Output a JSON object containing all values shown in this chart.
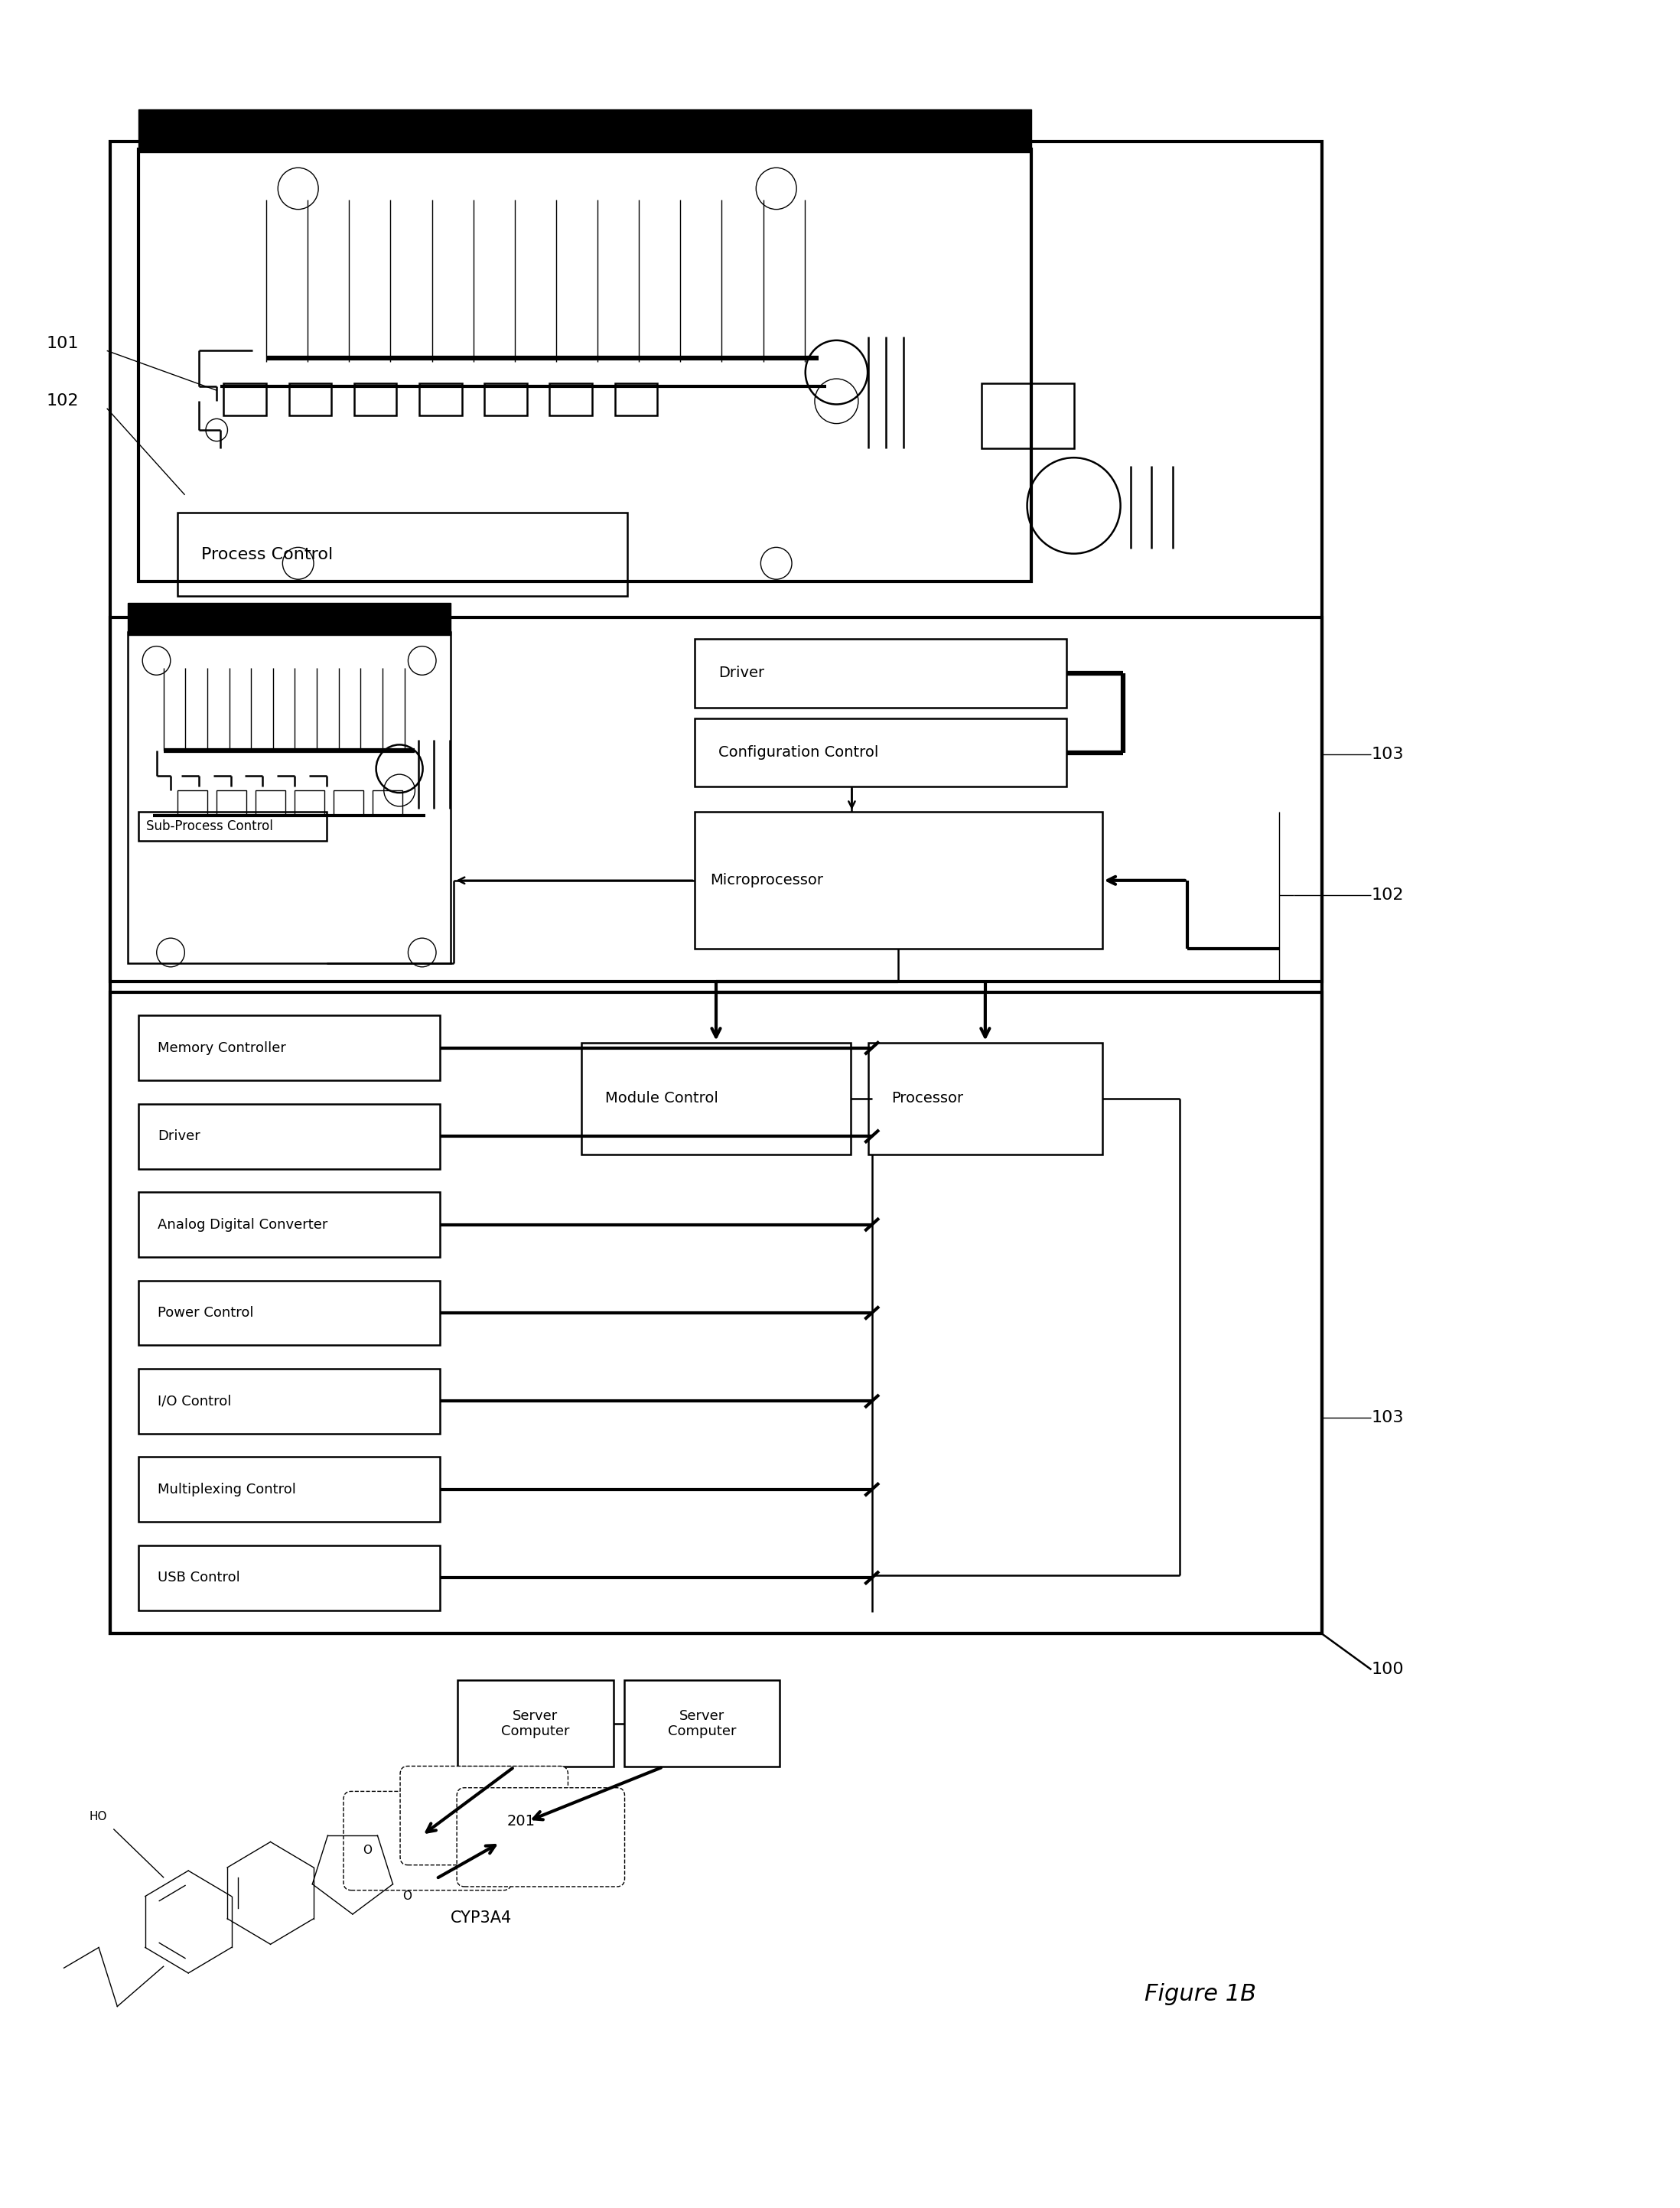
{
  "bg_color": "#ffffff",
  "lc": "#000000",
  "figure_label": "Figure 1B",
  "component_labels_left": [
    "Memory Controller",
    "Driver",
    "Analog Digital Converter",
    "Power Control",
    "I/O Control",
    "Multiplexing Control",
    "USB Control"
  ],
  "label_101": "101",
  "label_102": "102",
  "label_103": "103",
  "label_100": "100",
  "label_201": "201",
  "cyp3a4": "CYP3A4",
  "texts": {
    "process_control": "Process Control",
    "driver_top": "Driver",
    "config_control": "Configuration Control",
    "microprocessor": "Microprocessor",
    "sub_process": "Sub-Process Control",
    "module_control": "Module Control",
    "processor": "Processor",
    "server1": "Server\nComputer",
    "server2": "Server\nComputer"
  }
}
